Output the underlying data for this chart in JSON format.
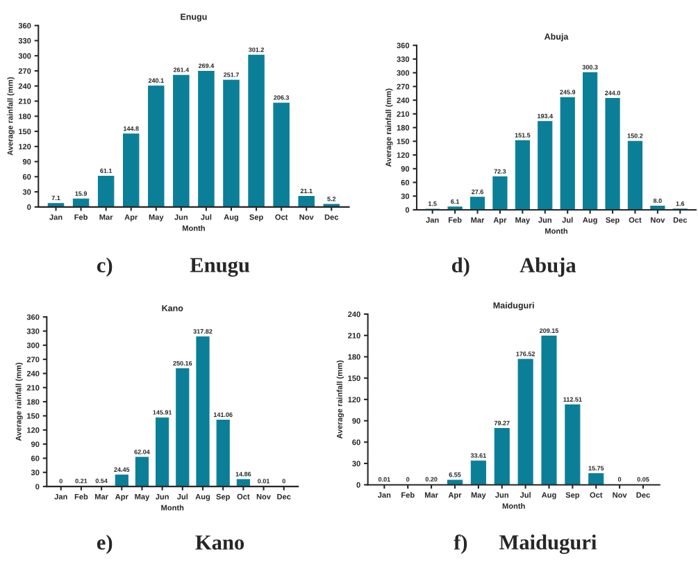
{
  "chart_data": [
    {
      "type": "bar",
      "title": "Enugu",
      "xlabel": "Month",
      "ylabel": "Average rainfall (mm)",
      "color": "#0b7f98",
      "ylim": [
        0,
        360
      ],
      "yticks": [
        0,
        30,
        60,
        90,
        120,
        150,
        180,
        210,
        240,
        270,
        300,
        330,
        360
      ],
      "grid": false,
      "categories": [
        "Jan",
        "Feb",
        "Mar",
        "Apr",
        "May",
        "Jun",
        "Jul",
        "Aug",
        "Sep",
        "Oct",
        "Nov",
        "Dec"
      ],
      "values": [
        7.1,
        15.9,
        61.1,
        144.8,
        240.1,
        261.4,
        269.4,
        251.7,
        301.2,
        206.3,
        21.1,
        5.2
      ],
      "value_labels": [
        "7.1",
        "15.9",
        "61.1",
        "144.8",
        "240.1",
        "261.4",
        "269.4",
        "251.7",
        "301.2",
        "206.3",
        "21.1",
        "5.2"
      ],
      "annotations": [
        "c)",
        "Enugu"
      ]
    },
    {
      "type": "bar",
      "title": "Abuja",
      "xlabel": "Month",
      "ylabel": "Average rainfall (mm)",
      "color": "#0b7f98",
      "ylim": [
        0,
        360
      ],
      "yticks": [
        0,
        30,
        60,
        90,
        120,
        150,
        180,
        210,
        240,
        270,
        300,
        330,
        360
      ],
      "grid": false,
      "categories": [
        "Jan",
        "Feb",
        "Mar",
        "Apr",
        "May",
        "Jun",
        "Jul",
        "Aug",
        "Sep",
        "Oct",
        "Nov",
        "Dec"
      ],
      "values": [
        1.5,
        6.1,
        27.6,
        72.3,
        151.5,
        193.4,
        245.9,
        300.3,
        244.0,
        150.2,
        8.0,
        1.6
      ],
      "value_labels": [
        "1.5",
        "6.1",
        "27.6",
        "72.3",
        "151.5",
        "193.4",
        "245.9",
        "300.3",
        "244.0",
        "150.2",
        "8.0",
        "1.6"
      ],
      "annotations": [
        "d)",
        "Abuja"
      ]
    },
    {
      "type": "bar",
      "title": "Kano",
      "xlabel": "Month",
      "ylabel": "Average rainfall (mm)",
      "color": "#0b7f98",
      "ylim": [
        0,
        360
      ],
      "yticks": [
        0,
        30,
        60,
        90,
        120,
        150,
        180,
        210,
        240,
        270,
        300,
        330,
        360
      ],
      "grid": false,
      "categories": [
        "Jan",
        "Feb",
        "Mar",
        "Apr",
        "May",
        "Jun",
        "Jul",
        "Aug",
        "Sep",
        "Oct",
        "Nov",
        "Dec"
      ],
      "values": [
        0,
        0.21,
        0.54,
        24.45,
        62.04,
        145.91,
        250.16,
        317.82,
        141.06,
        14.86,
        0.01,
        0
      ],
      "value_labels": [
        "0",
        "0.21",
        "0.54",
        "24.45",
        "62.04",
        "145.91",
        "250.16",
        "317.82",
        "141.06",
        "14.86",
        "0.01",
        "0"
      ],
      "annotations": [
        "e)",
        "Kano"
      ]
    },
    {
      "type": "bar",
      "title": "Maiduguri",
      "xlabel": "Month",
      "ylabel": "Average rainfall (mm)",
      "color": "#0b7f98",
      "ylim": [
        0,
        240
      ],
      "yticks": [
        0,
        30,
        60,
        90,
        120,
        150,
        180,
        210,
        240
      ],
      "grid": false,
      "categories": [
        "Jan",
        "Feb",
        "Mar",
        "Apr",
        "May",
        "Jun",
        "Jul",
        "Aug",
        "Sep",
        "Oct",
        "Nov",
        "Dec"
      ],
      "values": [
        0.01,
        0,
        0.2,
        6.55,
        33.61,
        79.27,
        176.52,
        209.15,
        112.51,
        15.75,
        0,
        0.05
      ],
      "value_labels": [
        "0.01",
        "0",
        "0.20",
        "6.55",
        "33.61",
        "79.27",
        "176.52",
        "209.15",
        "112.51",
        "15.75",
        "0",
        "0.05"
      ],
      "annotations": [
        "f)",
        "Maiduguri"
      ]
    }
  ]
}
